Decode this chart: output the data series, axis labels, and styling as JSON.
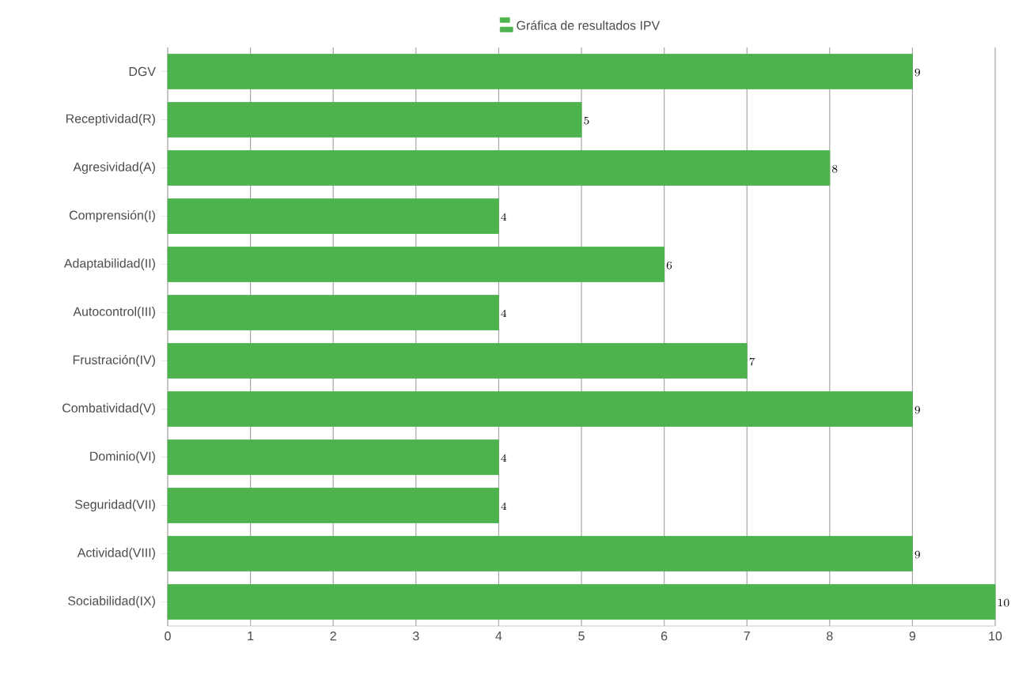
{
  "chart_data": {
    "type": "bar",
    "orientation": "horizontal",
    "categories": [
      "DGV",
      "Receptividad(R)",
      "Agresividad(A)",
      "Comprensión(I)",
      "Adaptabilidad(II)",
      "Autocontrol(III)",
      "Frustración(IV)",
      "Combatividad(V)",
      "Dominio(VI)",
      "Seguridad(VII)",
      "Actividad(VIII)",
      "Sociabilidad(IX)"
    ],
    "series": [
      {
        "name": "Gráfica de resultados IPV",
        "color": "#4db34d",
        "values": [
          9,
          5,
          8,
          4,
          6,
          4,
          7,
          9,
          4,
          4,
          9,
          10
        ]
      }
    ],
    "xlim": [
      0,
      10
    ],
    "xticks": [
      0,
      1,
      2,
      3,
      4,
      5,
      6,
      7,
      8,
      9,
      10
    ],
    "grid": "x",
    "legend": "top",
    "data_labels": true
  }
}
